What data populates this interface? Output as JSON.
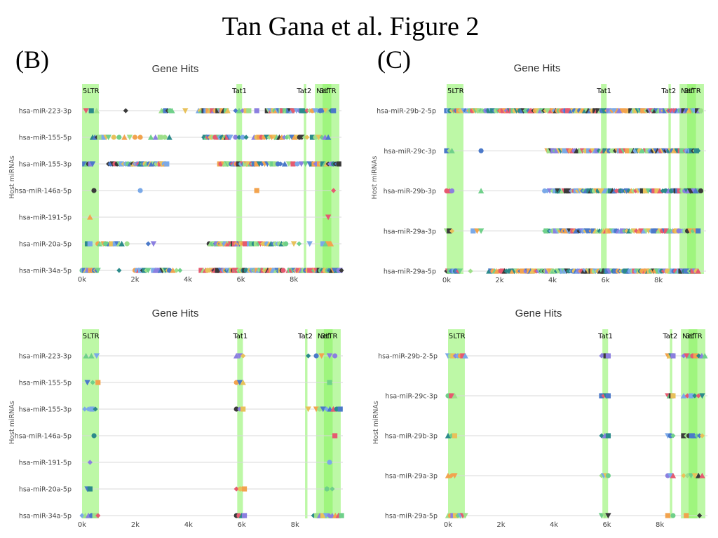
{
  "figure_title": "Tan Gana et al. Figure 2",
  "panel_labels": [
    "(B)",
    "(C)"
  ],
  "colors": {
    "region": "#86f25c",
    "region_dark": "#5cee2e",
    "gridline": "#d9d9d9",
    "markers": [
      "#e65a70",
      "#7aa9e8",
      "#2b8a8a",
      "#3a3a3a",
      "#f2a34e",
      "#8b7fe0",
      "#6fd08a",
      "#9edf8a",
      "#4b79c9",
      "#e8c15a"
    ]
  },
  "chart_data": [
    {
      "type": "scatter",
      "title": "Gene Hits",
      "ylabel": "Host miRNAs",
      "xlabel": "",
      "xlim": [
        0,
        9800
      ],
      "xticks": [
        "0k",
        "2k",
        "4k",
        "6k",
        "8k"
      ],
      "categories": [
        "hsa-miR-223-3p",
        "hsa-miR-155-5p",
        "hsa-miR-155-3p",
        "hsa-miR-146a-5p",
        "hsa-miR-191-5p",
        "hsa-miR-20a-5p",
        "hsa-miR-34a-5p"
      ],
      "regions": [
        {
          "name": "5LTR",
          "start": 0,
          "end": 634
        },
        {
          "name": "Tat1",
          "start": 5831,
          "end": 6045
        },
        {
          "name": "Tat2",
          "start": 8379,
          "end": 8469
        },
        {
          "name": "Nef",
          "start": 8797,
          "end": 9417
        },
        {
          "name": "3LTR",
          "start": 9086,
          "end": 9719
        }
      ],
      "series_ranges": [
        [
          [
            150,
            550,
            3
          ],
          [
            1650,
            1700,
            1
          ],
          [
            3000,
            3400,
            6
          ],
          [
            3900,
            4100,
            1
          ],
          [
            4400,
            5500,
            22
          ],
          [
            5800,
            6200,
            4
          ],
          [
            6300,
            6600,
            2
          ],
          [
            7000,
            8000,
            22
          ],
          [
            8000,
            9500,
            16
          ]
        ],
        [
          [
            400,
            1000,
            8
          ],
          [
            1200,
            1800,
            4
          ],
          [
            2000,
            2200,
            2
          ],
          [
            2600,
            3300,
            5
          ],
          [
            4600,
            5600,
            22
          ],
          [
            5800,
            6200,
            4
          ],
          [
            6500,
            8500,
            22
          ],
          [
            8700,
            9300,
            6
          ]
        ],
        [
          [
            100,
            400,
            5
          ],
          [
            1000,
            1900,
            12
          ],
          [
            1900,
            3200,
            28
          ],
          [
            5200,
            6500,
            28
          ],
          [
            6500,
            7400,
            10
          ],
          [
            7500,
            8600,
            8
          ],
          [
            8700,
            9700,
            16
          ]
        ],
        [
          [
            450,
            500,
            1
          ],
          [
            2200,
            2250,
            1
          ],
          [
            6600,
            6650,
            1
          ],
          [
            9500,
            9550,
            1
          ]
        ],
        [
          [
            300,
            350,
            1
          ],
          [
            9300,
            9400,
            1
          ]
        ],
        [
          [
            200,
            300,
            2
          ],
          [
            600,
            1400,
            12
          ],
          [
            1500,
            1700,
            2
          ],
          [
            2500,
            2700,
            2
          ],
          [
            4800,
            6000,
            26
          ],
          [
            6000,
            6400,
            6
          ],
          [
            6500,
            7700,
            16
          ],
          [
            8000,
            8200,
            2
          ],
          [
            8600,
            8750,
            1
          ],
          [
            9100,
            9400,
            4
          ]
        ],
        [
          [
            0,
            600,
            14
          ],
          [
            1400,
            1500,
            1
          ],
          [
            2000,
            2500,
            8
          ],
          [
            2700,
            3300,
            10
          ],
          [
            3300,
            3700,
            4
          ],
          [
            4500,
            4900,
            6
          ],
          [
            4900,
            5800,
            22
          ],
          [
            5800,
            6200,
            8
          ],
          [
            6300,
            7600,
            30
          ],
          [
            7800,
            8600,
            16
          ],
          [
            8700,
            9800,
            22
          ]
        ]
      ]
    },
    {
      "type": "scatter",
      "title": "Gene Hits",
      "ylabel": "Host miRNAs",
      "xlabel": "",
      "xlim": [
        0,
        9800
      ],
      "xticks": [
        "0k",
        "2k",
        "4k",
        "6k",
        "8k"
      ],
      "categories": [
        "hsa-miR-29b-2-5p",
        "hsa-miR-29c-3p",
        "hsa-miR-29b-3p",
        "hsa-miR-29a-3p",
        "hsa-miR-29a-5p"
      ],
      "regions": [
        {
          "name": "5LTR",
          "start": 0,
          "end": 634
        },
        {
          "name": "Tat1",
          "start": 5831,
          "end": 6045
        },
        {
          "name": "Tat2",
          "start": 8379,
          "end": 8469
        },
        {
          "name": "Nef",
          "start": 8797,
          "end": 9417
        },
        {
          "name": "3LTR",
          "start": 9086,
          "end": 9719
        }
      ],
      "series_ranges": [
        [
          [
            0,
            9600,
            150
          ]
        ],
        [
          [
            0,
            200,
            3
          ],
          [
            1300,
            1350,
            1
          ],
          [
            3800,
            4600,
            12
          ],
          [
            4600,
            7600,
            40
          ],
          [
            7600,
            9500,
            32
          ]
        ],
        [
          [
            0,
            200,
            3
          ],
          [
            1300,
            1350,
            1
          ],
          [
            3700,
            4200,
            6
          ],
          [
            4200,
            4600,
            6
          ],
          [
            4700,
            5500,
            14
          ],
          [
            5500,
            6800,
            18
          ],
          [
            6800,
            7400,
            8
          ],
          [
            7400,
            8600,
            12
          ],
          [
            8600,
            9600,
            16
          ]
        ],
        [
          [
            0,
            200,
            3
          ],
          [
            1000,
            1300,
            3
          ],
          [
            3700,
            5300,
            28
          ],
          [
            5300,
            6800,
            20
          ],
          [
            6800,
            8000,
            14
          ],
          [
            8000,
            9000,
            14
          ],
          [
            9000,
            9500,
            6
          ]
        ],
        [
          [
            0,
            500,
            10
          ],
          [
            900,
            950,
            1
          ],
          [
            1600,
            3000,
            20
          ],
          [
            3000,
            5800,
            50
          ],
          [
            5800,
            8000,
            40
          ],
          [
            8000,
            9500,
            24
          ]
        ]
      ]
    },
    {
      "type": "scatter",
      "title": "Gene Hits",
      "ylabel": "Host miRNAs",
      "xlabel": "",
      "xlim": [
        0,
        9800
      ],
      "xticks": [
        "0k",
        "2k",
        "4k",
        "6k",
        "8k"
      ],
      "categories": [
        "hsa-miR-223-3p",
        "hsa-miR-155-5p",
        "hsa-miR-155-3p",
        "hsa-miR-146a-5p",
        "hsa-miR-191-5p",
        "hsa-miR-20a-5p",
        "hsa-miR-34a-5p"
      ],
      "regions": [
        {
          "name": "5LTR",
          "start": 0,
          "end": 634
        },
        {
          "name": "Tat1",
          "start": 5831,
          "end": 6045
        },
        {
          "name": "Tat2",
          "start": 8379,
          "end": 8469
        },
        {
          "name": "Nef",
          "start": 8797,
          "end": 9417
        },
        {
          "name": "3LTR",
          "start": 9086,
          "end": 9719
        }
      ],
      "series_ranges": [
        [
          [
            150,
            550,
            3
          ],
          [
            5800,
            6050,
            3
          ],
          [
            8500,
            8550,
            1
          ],
          [
            8800,
            9000,
            2
          ],
          [
            9300,
            9500,
            2
          ]
        ],
        [
          [
            200,
            600,
            3
          ],
          [
            5800,
            6050,
            3
          ],
          [
            9300,
            9450,
            1
          ]
        ],
        [
          [
            100,
            500,
            4
          ],
          [
            5800,
            6050,
            3
          ],
          [
            8500,
            8550,
            1
          ],
          [
            8800,
            9700,
            8
          ]
        ],
        [
          [
            450,
            500,
            1
          ],
          [
            9500,
            9550,
            1
          ]
        ],
        [
          [
            300,
            350,
            1
          ],
          [
            9300,
            9400,
            1
          ]
        ],
        [
          [
            200,
            300,
            2
          ],
          [
            5800,
            6100,
            3
          ],
          [
            9200,
            9400,
            2
          ]
        ],
        [
          [
            0,
            600,
            6
          ],
          [
            5800,
            6100,
            4
          ],
          [
            8700,
            9750,
            10
          ]
        ]
      ]
    },
    {
      "type": "scatter",
      "title": "Gene Hits",
      "ylabel": "Host miRNAs",
      "xlabel": "",
      "xlim": [
        0,
        9800
      ],
      "xticks": [
        "0k",
        "2k",
        "4k",
        "6k",
        "8k"
      ],
      "categories": [
        "hsa-miR-29b-2-5p",
        "hsa-miR-29c-3p",
        "hsa-miR-29b-3p",
        "hsa-miR-29a-3p",
        "hsa-miR-29a-5p"
      ],
      "regions": [
        {
          "name": "5LTR",
          "start": 0,
          "end": 634
        },
        {
          "name": "Tat1",
          "start": 5831,
          "end": 6045
        },
        {
          "name": "Tat2",
          "start": 8379,
          "end": 8469
        },
        {
          "name": "Nef",
          "start": 8797,
          "end": 9417
        },
        {
          "name": "3LTR",
          "start": 9086,
          "end": 9719
        }
      ],
      "series_ranges": [
        [
          [
            0,
            650,
            8
          ],
          [
            5800,
            6050,
            4
          ],
          [
            8300,
            8500,
            4
          ],
          [
            8900,
            9700,
            8
          ]
        ],
        [
          [
            0,
            250,
            3
          ],
          [
            5800,
            6050,
            4
          ],
          [
            8300,
            8500,
            4
          ],
          [
            8900,
            9600,
            6
          ]
        ],
        [
          [
            0,
            250,
            3
          ],
          [
            5800,
            6050,
            3
          ],
          [
            8300,
            8500,
            3
          ],
          [
            8900,
            9600,
            8
          ]
        ],
        [
          [
            0,
            250,
            3
          ],
          [
            5800,
            6050,
            4
          ],
          [
            8300,
            8500,
            3
          ],
          [
            8900,
            9600,
            6
          ]
        ],
        [
          [
            0,
            650,
            8
          ],
          [
            5800,
            6050,
            3
          ],
          [
            8300,
            8500,
            2
          ],
          [
            9000,
            9500,
            2
          ]
        ]
      ]
    }
  ]
}
